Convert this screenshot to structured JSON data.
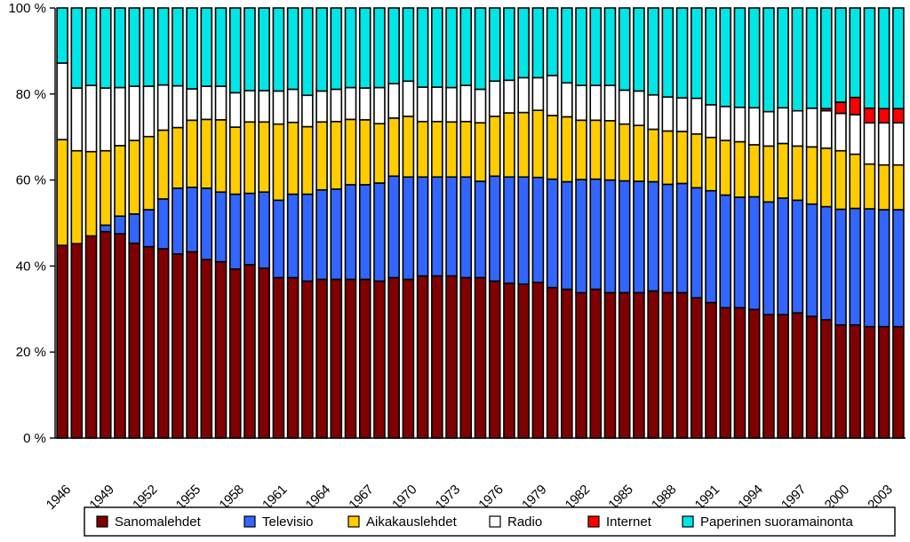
{
  "chart_data": {
    "type": "bar",
    "stacked": true,
    "normalized": true,
    "title": "",
    "xlabel": "",
    "ylabel": "",
    "ylim": [
      0,
      100
    ],
    "y_ticks": [
      "0 %",
      "20 %",
      "40 %",
      "60 %",
      "80 %",
      "100 %"
    ],
    "categories": [
      "1946",
      "1947",
      "1948",
      "1949",
      "1950",
      "1951",
      "1952",
      "1953",
      "1954",
      "1955",
      "1956",
      "1957",
      "1958",
      "1959",
      "1960",
      "1961",
      "1962",
      "1963",
      "1964",
      "1965",
      "1966",
      "1967",
      "1968",
      "1969",
      "1970",
      "1971",
      "1972",
      "1973",
      "1974",
      "1975",
      "1976",
      "1977",
      "1978",
      "1979",
      "1980",
      "1981",
      "1982",
      "1983",
      "1984",
      "1985",
      "1986",
      "1987",
      "1988",
      "1989",
      "1990",
      "1991",
      "1992",
      "1993",
      "1994",
      "1995",
      "1996",
      "1997",
      "1998",
      "1999",
      "2000",
      "2001",
      "2002",
      "2003",
      "2004"
    ],
    "x_tick_labels": [
      "1946",
      "1949",
      "1952",
      "1955",
      "1958",
      "1961",
      "1964",
      "1967",
      "1970",
      "1973",
      "1976",
      "1979",
      "1982",
      "1985",
      "1988",
      "1991",
      "1994",
      "1997",
      "2000",
      "2003"
    ],
    "series": [
      {
        "name": "Sanomalehdet",
        "color": "#800000",
        "values": [
          44.8,
          45.2,
          47.0,
          48.0,
          47.5,
          45.3,
          44.5,
          44.0,
          42.8,
          43.3,
          41.5,
          41.0,
          39.3,
          40.3,
          39.5,
          37.3,
          37.3,
          36.5,
          36.9,
          36.9,
          36.9,
          36.9,
          36.5,
          37.3,
          36.9,
          37.7,
          37.7,
          37.7,
          37.3,
          37.3,
          36.5,
          36.0,
          35.8,
          36.2,
          35.0,
          34.6,
          33.8,
          34.6,
          33.8,
          33.8,
          33.8,
          34.2,
          33.8,
          33.8,
          32.6,
          31.5,
          30.3,
          30.3,
          29.9,
          28.7,
          28.7,
          29.1,
          28.3,
          27.5,
          26.3,
          26.3,
          25.9,
          25.9,
          25.9
        ]
      },
      {
        "name": "Televisio",
        "color": "#3366ff",
        "values": [
          0,
          0,
          0,
          1.5,
          4.1,
          6.8,
          8.6,
          11.6,
          15.3,
          15.0,
          16.6,
          16.2,
          17.4,
          16.6,
          17.7,
          18.0,
          19.4,
          20.2,
          20.8,
          21.0,
          22.0,
          22.0,
          22.8,
          23.6,
          23.8,
          23.0,
          23.0,
          23.0,
          23.4,
          22.4,
          24.4,
          24.7,
          24.9,
          24.4,
          25.2,
          25.0,
          26.3,
          25.6,
          26.2,
          26.0,
          25.9,
          25.4,
          25.2,
          25.4,
          25.6,
          26.0,
          26.2,
          25.7,
          26.2,
          26.2,
          27.1,
          26.2,
          26.1,
          26.3,
          26.9,
          27.1,
          27.4,
          27.2,
          27.2
        ]
      },
      {
        "name": "Aikakauslehdet",
        "color": "#ffcc00",
        "values": [
          24.6,
          21.6,
          19.6,
          17.3,
          16.4,
          17.1,
          17.0,
          16.0,
          14.1,
          15.6,
          16.0,
          16.8,
          15.6,
          16.6,
          16.3,
          17.7,
          16.7,
          15.7,
          15.8,
          15.7,
          15.2,
          15.1,
          13.8,
          13.5,
          14.1,
          12.9,
          12.9,
          12.8,
          12.9,
          13.6,
          13.9,
          14.9,
          15.0,
          15.6,
          14.8,
          15.1,
          13.8,
          13.7,
          13.8,
          13.2,
          13.0,
          12.2,
          12.4,
          12.1,
          12.5,
          12.4,
          12.7,
          12.9,
          12.1,
          13.0,
          12.7,
          12.6,
          13.3,
          13.6,
          13.6,
          12.6,
          10.4,
          10.4,
          10.4
        ]
      },
      {
        "name": "Radio",
        "color": "#ffffff",
        "values": [
          17.8,
          14.6,
          15.4,
          14.6,
          13.5,
          12.6,
          11.7,
          10.5,
          9.7,
          7.3,
          7.7,
          7.8,
          8.0,
          7.3,
          7.3,
          7.7,
          7.7,
          7.3,
          7.2,
          7.5,
          7.4,
          7.4,
          8.4,
          8.0,
          8.2,
          8.0,
          8.0,
          8.0,
          8.4,
          7.8,
          8.2,
          7.6,
          8.1,
          7.6,
          9.3,
          7.9,
          8.1,
          8.1,
          8.2,
          7.9,
          8.0,
          8.0,
          7.9,
          7.8,
          8.3,
          7.6,
          7.9,
          8.0,
          8.6,
          8.0,
          8.3,
          8.2,
          9.0,
          8.7,
          8.7,
          9.2,
          9.6,
          9.8,
          9.8
        ]
      },
      {
        "name": "Internet",
        "color": "#ff0000",
        "values": [
          0,
          0,
          0,
          0,
          0,
          0,
          0,
          0,
          0,
          0,
          0,
          0,
          0,
          0,
          0,
          0,
          0,
          0,
          0,
          0,
          0,
          0,
          0,
          0,
          0,
          0,
          0,
          0,
          0,
          0,
          0,
          0,
          0,
          0,
          0,
          0,
          0,
          0,
          0,
          0,
          0,
          0,
          0,
          0,
          0,
          0,
          0,
          0,
          0,
          0,
          0,
          0,
          0,
          0.5,
          2.6,
          4.0,
          3.4,
          3.3,
          3.3
        ]
      },
      {
        "name": "Paperinen suoramainonta",
        "color": "#00e6e6",
        "values": [
          12.8,
          18.6,
          18.0,
          18.6,
          18.5,
          18.2,
          18.2,
          17.9,
          18.1,
          18.8,
          18.2,
          18.2,
          19.7,
          19.2,
          19.2,
          19.3,
          18.9,
          20.3,
          19.3,
          18.9,
          18.5,
          18.6,
          18.5,
          17.6,
          17.0,
          18.4,
          18.4,
          18.5,
          18.0,
          18.9,
          17.0,
          16.8,
          16.2,
          16.2,
          15.7,
          17.4,
          18.0,
          18.0,
          18.0,
          19.1,
          19.3,
          20.2,
          20.7,
          20.9,
          21.0,
          22.5,
          22.9,
          23.1,
          23.2,
          24.1,
          23.2,
          23.9,
          23.3,
          23.4,
          21.9,
          20.8,
          23.3,
          23.4,
          23.4
        ]
      }
    ],
    "legend": {
      "position": "bottom",
      "entries": [
        "Sanomalehdet",
        "Televisio",
        "Aikakauslehdet",
        "Radio",
        "Internet",
        "Paperinen suoramainonta"
      ]
    }
  }
}
